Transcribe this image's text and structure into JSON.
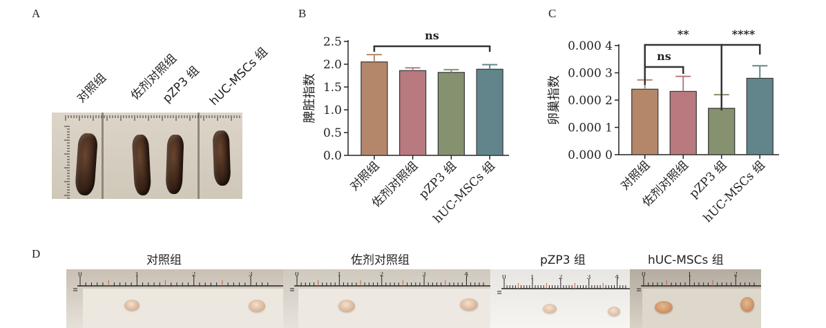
{
  "panels": {
    "a": "A",
    "b": "B",
    "c": "C",
    "d": "D"
  },
  "groups": [
    "对照组",
    "佐剂对照组",
    "pZP3 组",
    "hUC-MSCs 组"
  ],
  "panel_a_labels": [
    "对照组",
    "佐剂对照组",
    "pZP3 组",
    "hUC-MSCs 组"
  ],
  "panel_d_titles": [
    "对照组",
    "佐剂对照组",
    "pZP3 组",
    "hUC-MSCs 组"
  ],
  "colors": {
    "bar1": "#b5876a",
    "bar2": "#b87a7e",
    "bar3": "#869170",
    "bar4": "#62858c",
    "axis": "#222222"
  },
  "chart_data": [
    {
      "type": "bar",
      "panel": "B",
      "categories": [
        "对照组",
        "佐剂对照组",
        "pZP3 组",
        "hUC-MSCs 组"
      ],
      "values": [
        2.05,
        1.86,
        1.82,
        1.89
      ],
      "errors": [
        0.16,
        0.06,
        0.06,
        0.1
      ],
      "ylabel": "脾脏指数",
      "ylim": [
        0,
        2.5
      ],
      "yticks": [
        "0.0",
        "0.5",
        "1.0",
        "1.5",
        "2.0",
        "2.5"
      ],
      "annotations": [
        {
          "from": 0,
          "to": 3,
          "text": "ns"
        }
      ]
    },
    {
      "type": "bar",
      "panel": "C",
      "categories": [
        "对照组",
        "佐剂对照组",
        "pZP3 组",
        "hUC-MSCs 组"
      ],
      "values": [
        0.00024,
        0.000232,
        0.00017,
        0.00028
      ],
      "errors": [
        3.4e-05,
        5.5e-05,
        5e-05,
        4.6e-05
      ],
      "ylabel": "卵巢指数",
      "ylim": [
        0,
        0.0004
      ],
      "yticks": [
        "0.000 0",
        "0.000 1",
        "0.000 2",
        "0.000 3",
        "0.000 4"
      ],
      "annotations": [
        {
          "from": 0,
          "to": 1,
          "text": "ns"
        },
        {
          "from": 0,
          "to": 2,
          "text": "**"
        },
        {
          "from": 2,
          "to": 3,
          "text": "****"
        }
      ]
    }
  ]
}
